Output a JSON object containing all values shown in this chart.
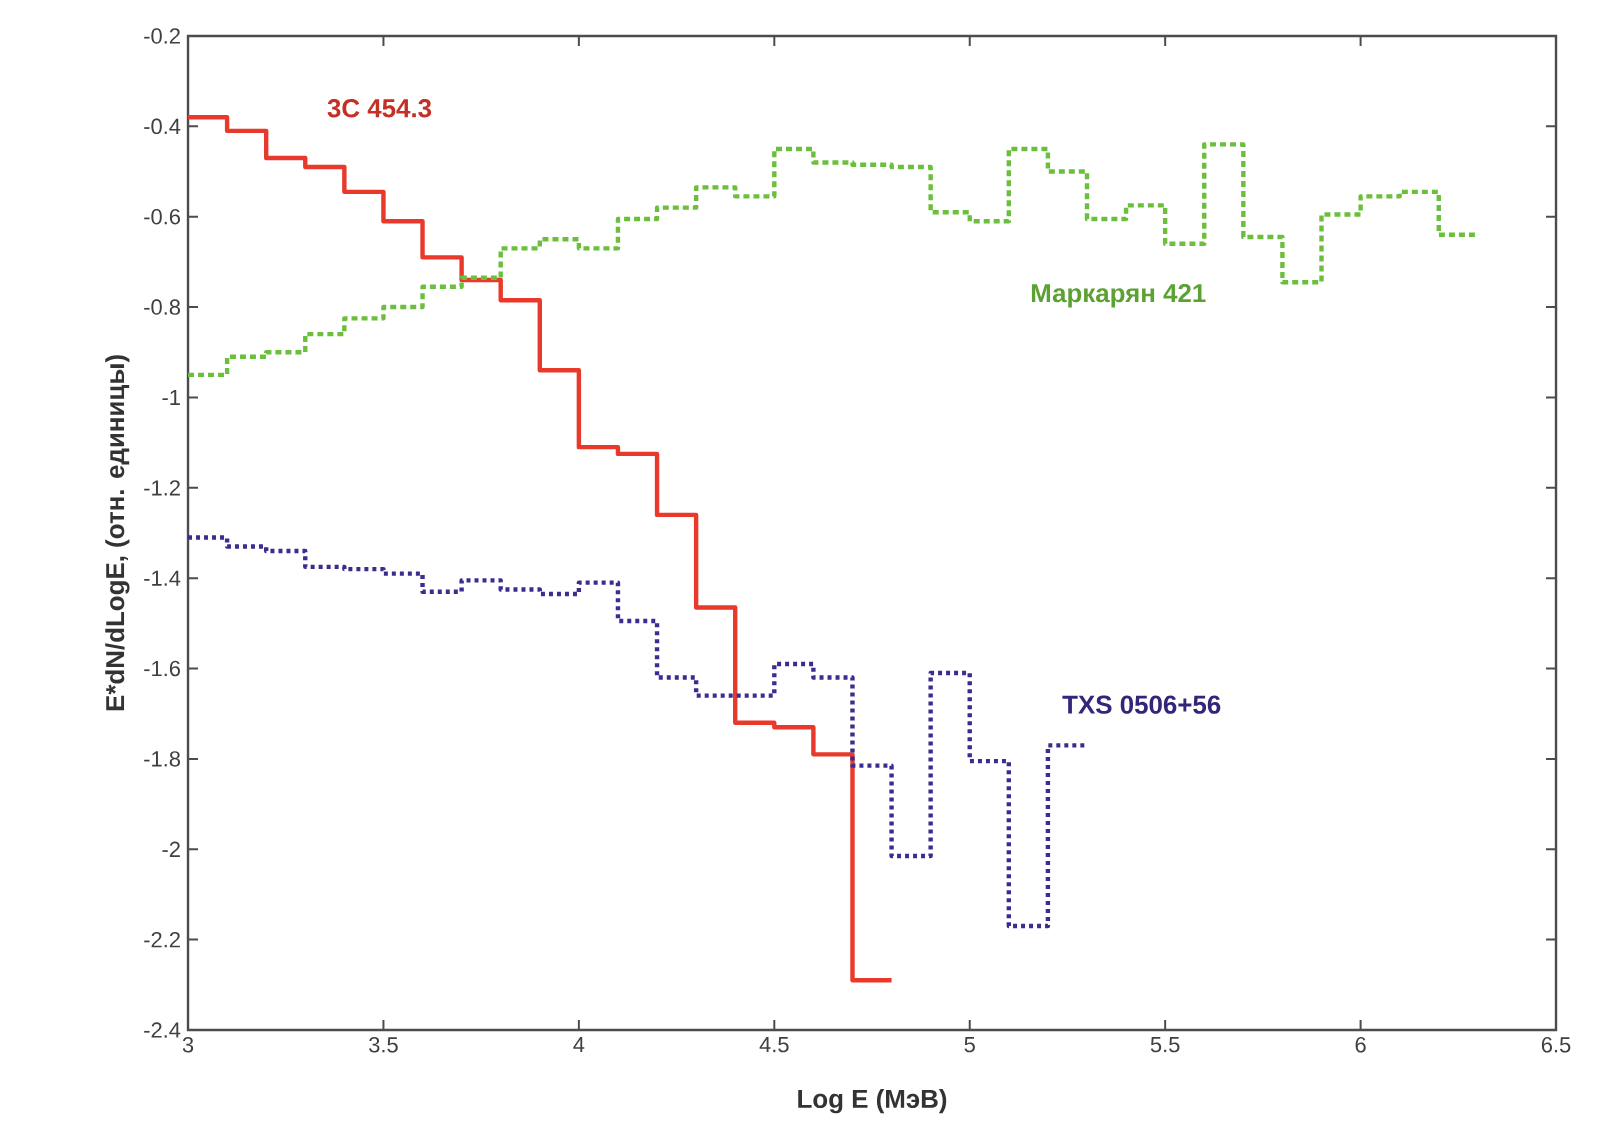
{
  "chart_data": {
    "type": "step",
    "xlabel": "Log E (МэВ)",
    "ylabel": "E*dN/dLogE, (отн. единицы)",
    "xlim": [
      3,
      6.5
    ],
    "xticks": [
      3,
      3.5,
      4,
      4.5,
      5,
      5.5,
      6,
      6.5
    ],
    "ylim": [
      -2.4,
      -0.2
    ],
    "yticks": [
      -2.4,
      -2.2,
      -2,
      -1.8,
      -1.6,
      -1.4,
      -1.2,
      -1,
      -0.8,
      -0.6,
      -0.4,
      -0.2
    ],
    "grid": false,
    "legend": false,
    "marker": "none",
    "series": [
      {
        "name": "3C 454.3",
        "color": "#e8392a",
        "line_style": "solid",
        "x": [
          3.0,
          3.1,
          3.2,
          3.3,
          3.4,
          3.5,
          3.6,
          3.7,
          3.8,
          3.9,
          4.0,
          4.1,
          4.2,
          4.3,
          4.4,
          4.5,
          4.6,
          4.7,
          4.8
        ],
        "values": [
          -0.38,
          -0.41,
          -0.47,
          -0.49,
          -0.545,
          -0.61,
          -0.69,
          -0.74,
          -0.785,
          -0.94,
          -1.11,
          -1.125,
          -1.26,
          -1.465,
          -1.72,
          -1.73,
          -1.79,
          -2.29,
          -2.29
        ]
      },
      {
        "name": "Маркарян 421",
        "color": "#6cbf3c",
        "line_style": "dashed",
        "x": [
          3.0,
          3.1,
          3.2,
          3.3,
          3.4,
          3.5,
          3.6,
          3.7,
          3.8,
          3.9,
          4.0,
          4.1,
          4.2,
          4.3,
          4.4,
          4.5,
          4.6,
          4.7,
          4.8,
          4.9,
          5.0,
          5.1,
          5.2,
          5.3,
          5.4,
          5.5,
          5.6,
          5.7,
          5.8,
          5.9,
          6.0,
          6.1,
          6.2,
          6.3
        ],
        "values": [
          -0.95,
          -0.91,
          -0.9,
          -0.86,
          -0.825,
          -0.8,
          -0.755,
          -0.735,
          -0.67,
          -0.65,
          -0.67,
          -0.605,
          -0.58,
          -0.535,
          -0.555,
          -0.45,
          -0.48,
          -0.485,
          -0.49,
          -0.59,
          -0.61,
          -0.45,
          -0.5,
          -0.605,
          -0.575,
          -0.66,
          -0.44,
          -0.645,
          -0.745,
          -0.595,
          -0.555,
          -0.545,
          -0.64,
          -0.64
        ]
      },
      {
        "name": "TXS 0506+56",
        "color": "#3b2d8f",
        "line_style": "dotted",
        "x": [
          3.0,
          3.1,
          3.2,
          3.3,
          3.4,
          3.5,
          3.6,
          3.7,
          3.8,
          3.9,
          4.0,
          4.1,
          4.2,
          4.3,
          4.4,
          4.5,
          4.6,
          4.7,
          4.8,
          4.9,
          5.0,
          5.1,
          5.2,
          5.3
        ],
        "values": [
          -1.31,
          -1.33,
          -1.34,
          -1.375,
          -1.38,
          -1.39,
          -1.43,
          -1.405,
          -1.425,
          -1.435,
          -1.41,
          -1.495,
          -1.62,
          -1.66,
          -1.66,
          -1.59,
          -1.62,
          -1.815,
          -2.015,
          -1.61,
          -1.805,
          -2.17,
          -1.77,
          -1.77
        ]
      }
    ]
  }
}
